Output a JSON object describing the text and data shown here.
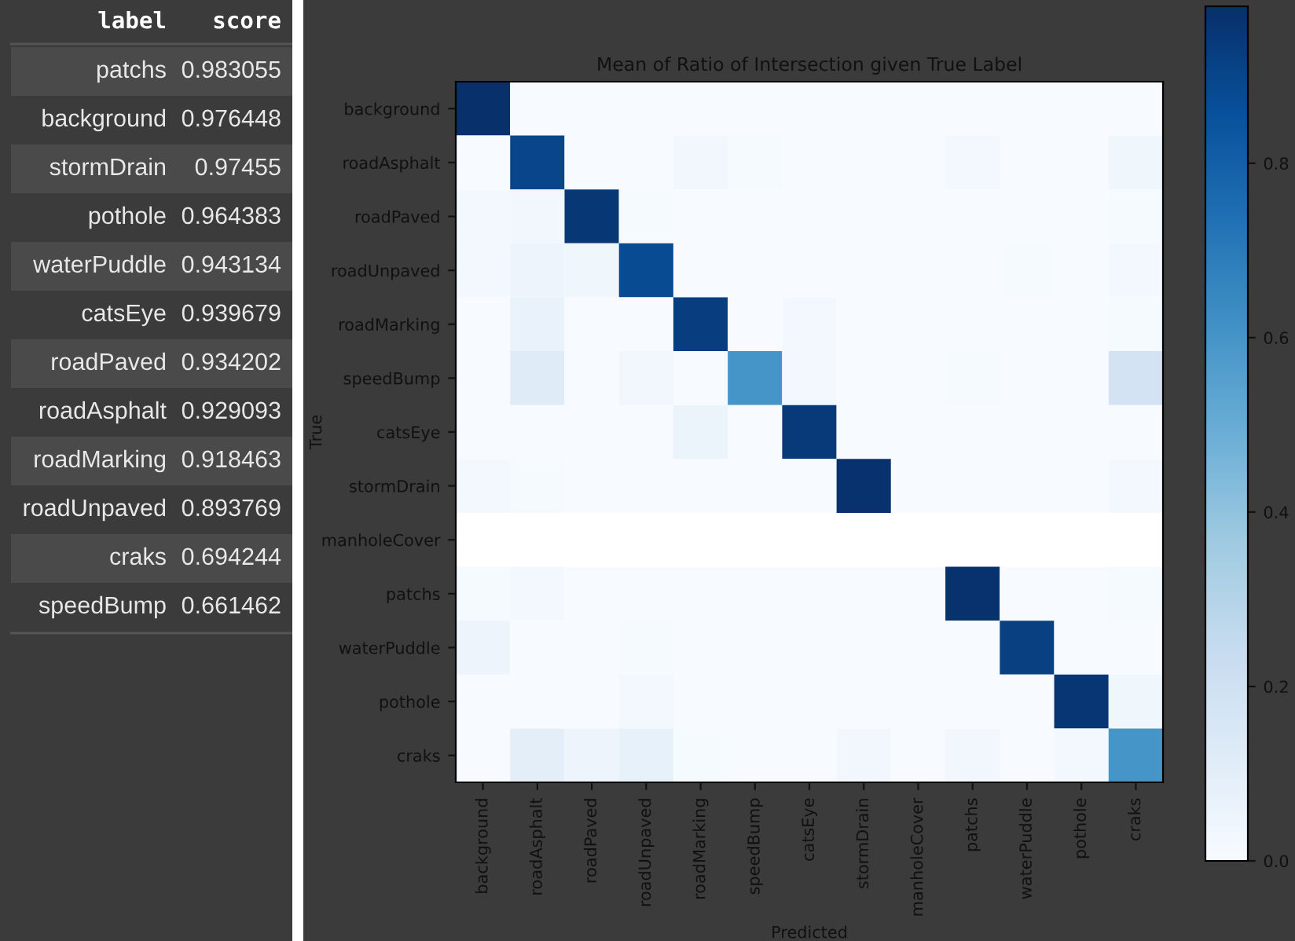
{
  "chart_data": [
    {
      "type": "other",
      "annotations": [
        "label",
        "score"
      ],
      "categories": [
        "patchs",
        "background",
        "stormDrain",
        "pothole",
        "waterPuddle",
        "catsEye",
        "roadPaved",
        "roadAsphalt",
        "roadMarking",
        "roadUnpaved",
        "craks",
        "speedBump"
      ],
      "values": [
        0.983055,
        0.976448,
        0.97455,
        0.964383,
        0.943134,
        0.939679,
        0.934202,
        0.929093,
        0.918463,
        0.893769,
        0.694244,
        0.661462
      ],
      "data_labels": true
    },
    {
      "type": "heatmap",
      "title": "Mean of Ratio of Intersection given True Label",
      "xlabel": "Predicted",
      "ylabel": "True",
      "categories": [
        "background",
        "roadAsphalt",
        "roadPaved",
        "roadUnpaved",
        "roadMarking",
        "speedBump",
        "catsEye",
        "stormDrain",
        "manholeCover",
        "patchs",
        "waterPuddle",
        "pothole",
        "craks"
      ],
      "y_categories": [
        "background",
        "roadAsphalt",
        "roadPaved",
        "roadUnpaved",
        "roadMarking",
        "speedBump",
        "catsEye",
        "stormDrain",
        "manholeCover",
        "patchs",
        "waterPuddle",
        "pothole",
        "craks"
      ],
      "cells": [
        [
          0.98,
          0,
          0,
          0,
          0,
          0,
          0,
          0,
          0,
          0,
          0,
          0,
          0
        ],
        [
          0,
          0.9,
          0,
          0,
          0.03,
          0.01,
          0,
          0,
          0,
          0.02,
          0,
          0,
          0.04
        ],
        [
          0.02,
          0.03,
          0.95,
          0.01,
          0,
          0,
          0,
          0,
          0,
          0,
          0,
          0,
          0.01
        ],
        [
          0.02,
          0.05,
          0.04,
          0.88,
          0,
          0,
          0,
          0,
          0,
          0,
          0.01,
          0,
          0.02
        ],
        [
          0,
          0.07,
          0,
          0,
          0.93,
          0,
          0.02,
          0,
          0,
          0,
          0,
          0,
          0.01
        ],
        [
          0,
          0.12,
          0,
          0.03,
          0,
          0.6,
          0.02,
          0,
          0,
          0.01,
          0,
          0,
          0.18
        ],
        [
          0,
          0,
          0,
          0,
          0.06,
          0,
          0.94,
          0,
          0,
          0,
          0,
          0,
          0
        ],
        [
          0.02,
          0.01,
          0,
          0,
          0,
          0,
          0,
          0.97,
          0,
          0,
          0,
          0,
          0.02
        ],
        [
          null,
          null,
          null,
          null,
          null,
          null,
          null,
          null,
          null,
          null,
          null,
          null,
          null
        ],
        [
          0.01,
          0.02,
          0,
          0,
          0,
          0,
          0,
          0,
          0,
          0.97,
          0,
          0,
          0.01
        ],
        [
          0.05,
          0,
          0,
          0.01,
          0,
          0,
          0,
          0,
          0,
          0,
          0.92,
          0,
          0
        ],
        [
          0,
          0,
          0,
          0.02,
          0,
          0,
          0,
          0,
          0,
          0,
          0,
          0.96,
          0.04
        ],
        [
          0,
          0.1,
          0.05,
          0.08,
          0.01,
          0,
          0,
          0.03,
          0,
          0.03,
          0,
          0.02,
          0.6
        ]
      ],
      "clim": [
        0,
        0.98
      ],
      "cticks": [
        {
          "value": 0,
          "label": "0.0"
        },
        0.2,
        0.4,
        0.6,
        0.8
      ]
    }
  ]
}
